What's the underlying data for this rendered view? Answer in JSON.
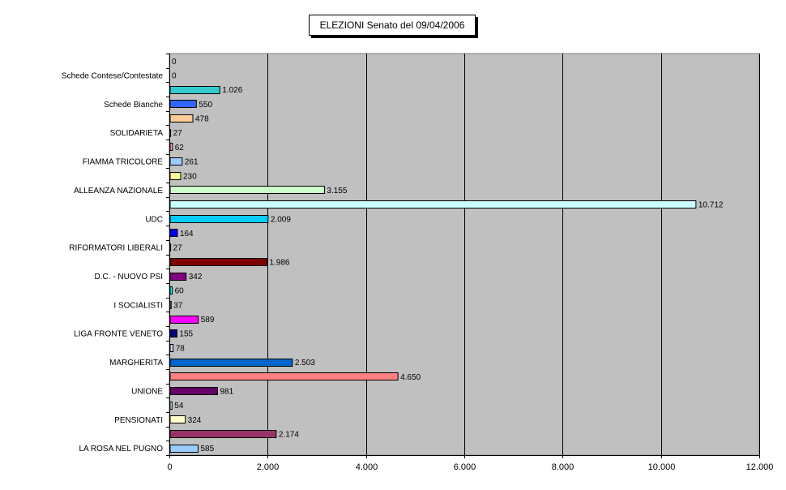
{
  "chart_data": {
    "type": "bar",
    "orientation": "horizontal",
    "title": "ELEZIONI Senato del 09/04/2006",
    "xlim": [
      0,
      12000
    ],
    "xticks": [
      0,
      2000,
      4000,
      6000,
      8000,
      10000,
      12000
    ],
    "xtick_labels": [
      "0",
      "2.000",
      "4.000",
      "6.000",
      "8.000",
      "10.000",
      "12.000"
    ],
    "grid": "vertical",
    "legend": "none",
    "colors": {
      "plot_background": "#c0c0c0",
      "page_background": "#ffffff"
    },
    "bars": [
      {
        "label": "",
        "value": 0,
        "value_label": "0",
        "color": "#c0c0c0"
      },
      {
        "label": "Schede Contese/Contestate",
        "value": 0,
        "value_label": "0",
        "color": "#c0c0c0"
      },
      {
        "label": "",
        "value": 1026,
        "value_label": "1.026",
        "color": "#33cccc"
      },
      {
        "label": "Schede Bianche",
        "value": 550,
        "value_label": "550",
        "color": "#3366ff"
      },
      {
        "label": "",
        "value": 478,
        "value_label": "478",
        "color": "#ffcc99"
      },
      {
        "label": "SOLIDARIETA",
        "value": 27,
        "value_label": "27",
        "color": "#6666cc"
      },
      {
        "label": "",
        "value": 62,
        "value_label": "62",
        "color": "#ff99cc"
      },
      {
        "label": "FIAMMA TRICOLORE",
        "value": 261,
        "value_label": "261",
        "color": "#99ccff"
      },
      {
        "label": "",
        "value": 230,
        "value_label": "230",
        "color": "#ffff99"
      },
      {
        "label": "ALLEANZA NAZIONALE",
        "value": 3155,
        "value_label": "3.155",
        "color": "#ccffcc"
      },
      {
        "label": "",
        "value": 10712,
        "value_label": "10.712",
        "color": "#ccffff"
      },
      {
        "label": "UDC",
        "value": 2009,
        "value_label": "2.009",
        "color": "#00ccff"
      },
      {
        "label": "",
        "value": 164,
        "value_label": "164",
        "color": "#0000ff"
      },
      {
        "label": "RIFORMATORI LIBERALI",
        "value": 27,
        "value_label": "27",
        "color": "#008080"
      },
      {
        "label": "",
        "value": 1986,
        "value_label": "1.986",
        "color": "#800000"
      },
      {
        "label": "D.C. - NUOVO PSI",
        "value": 342,
        "value_label": "342",
        "color": "#800080"
      },
      {
        "label": "",
        "value": 60,
        "value_label": "60",
        "color": "#00ffff"
      },
      {
        "label": "I SOCIALISTI",
        "value": 37,
        "value_label": "37",
        "color": "#ffff00"
      },
      {
        "label": "",
        "value": 589,
        "value_label": "589",
        "color": "#ff00ff"
      },
      {
        "label": "LIGA FRONTE VENETO",
        "value": 155,
        "value_label": "155",
        "color": "#000080"
      },
      {
        "label": "",
        "value": 78,
        "value_label": "78",
        "color": "#ccccff"
      },
      {
        "label": "MARGHERITA",
        "value": 2503,
        "value_label": "2.503",
        "color": "#0066cc"
      },
      {
        "label": "",
        "value": 4650,
        "value_label": "4.650",
        "color": "#ff8080"
      },
      {
        "label": "UNIONE",
        "value": 981,
        "value_label": "981",
        "color": "#660066"
      },
      {
        "label": "",
        "value": 54,
        "value_label": "54",
        "color": "#ccffff"
      },
      {
        "label": "PENSIONATI",
        "value": 324,
        "value_label": "324",
        "color": "#ffffcc"
      },
      {
        "label": "",
        "value": 2174,
        "value_label": "2.174",
        "color": "#993366"
      },
      {
        "label": "LA ROSA NEL PUGNO",
        "value": 585,
        "value_label": "585",
        "color": "#99ccff"
      }
    ]
  }
}
